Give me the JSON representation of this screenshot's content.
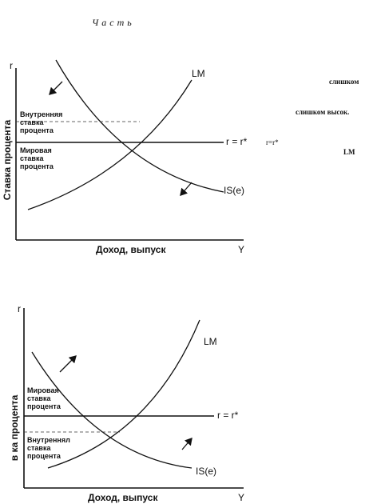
{
  "header": {
    "title": "Часть"
  },
  "diagram_top": {
    "axis_y_symbol": "r",
    "axis_y_label": "Ставка процента",
    "axis_x_label": "Доход, выпуск",
    "axis_x_symbol": "Y",
    "lm_label": "LM",
    "is_label": "IS(e)",
    "line_label": "r = r*",
    "upper_rate_label": [
      "Внутренняя",
      "ставка",
      "процента"
    ],
    "lower_rate_label": [
      "Мировая",
      "ставка",
      "процента"
    ]
  },
  "side_text": {
    "line1": "слишком",
    "line2": "слишком высок.",
    "line3": "LM",
    "line4": "r=r*"
  },
  "diagram_bottom": {
    "axis_y_symbol": "r",
    "axis_y_label": "в ка процента",
    "axis_x_label": "Доход, выпуск",
    "axis_x_symbol": "Y",
    "lm_label": "LM",
    "is_label": "IS(e)",
    "line_label": "r = r*",
    "upper_rate_label": [
      "Мировая",
      "ставка",
      "процента"
    ],
    "lower_rate_label": [
      "Внутреннял",
      "ставка",
      "процента"
    ]
  }
}
